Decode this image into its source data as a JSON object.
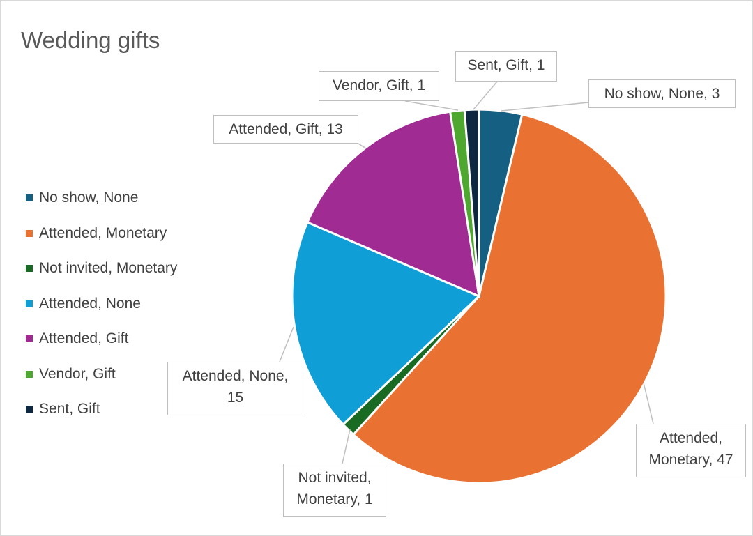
{
  "chart_data": {
    "type": "pie",
    "title": "Wedding gifts",
    "legend_position": "left",
    "start_angle": "top, clockwise",
    "slices": [
      {
        "label": "No show, None",
        "value": 3,
        "color": "#156082",
        "data_label": "No show, None, 3"
      },
      {
        "label": "Attended, Monetary",
        "value": 47,
        "color": "#E97132",
        "data_label": "Attended, Monetary, 47"
      },
      {
        "label": "Not invited, Monetary",
        "value": 1,
        "color": "#196B24",
        "data_label": "Not invited, Monetary, 1"
      },
      {
        "label": "Attended, None",
        "value": 15,
        "color": "#0F9ED5",
        "data_label": "Attended, None, 15"
      },
      {
        "label": "Attended, Gift",
        "value": 13,
        "color": "#A02B93",
        "data_label": "Attended, Gift, 13"
      },
      {
        "label": "Vendor, Gift",
        "value": 1,
        "color": "#4EA72E",
        "data_label": "Vendor, Gift, 1"
      },
      {
        "label": "Sent, Gift",
        "value": 1,
        "color": "#0E2841",
        "data_label": "Sent, Gift, 1"
      }
    ]
  }
}
